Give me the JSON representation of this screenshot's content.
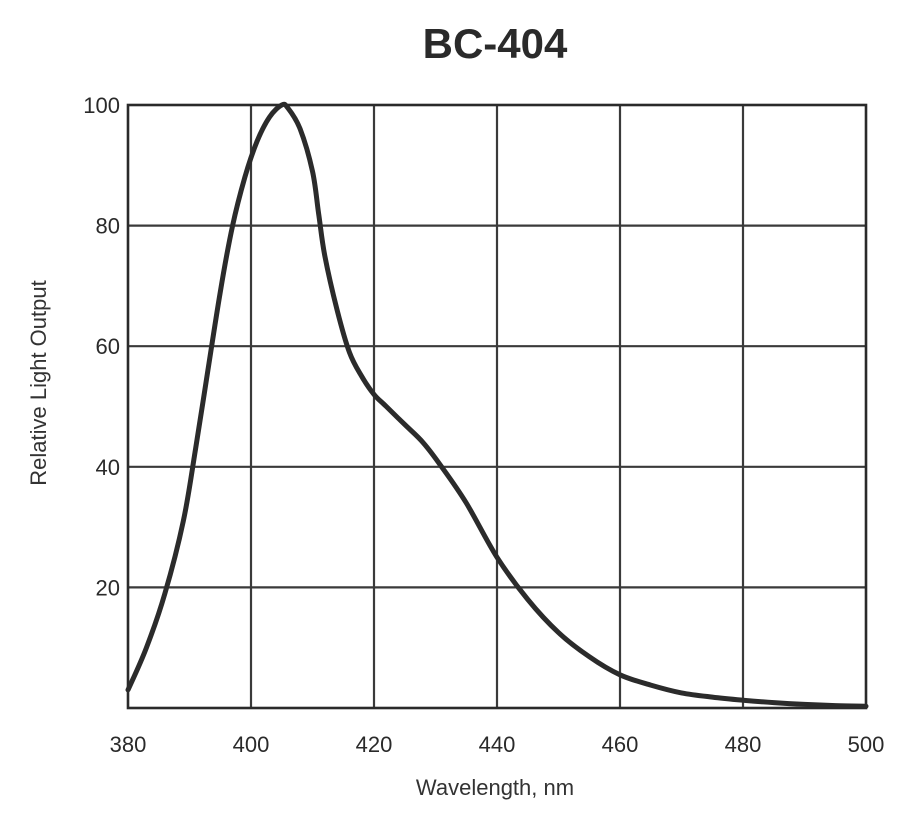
{
  "chart_data": {
    "type": "line",
    "title": "BC-404",
    "xlabel": "Wavelength, nm",
    "ylabel": "Relative Light Output",
    "xlim": [
      380,
      500
    ],
    "ylim": [
      0,
      100
    ],
    "x_ticks": [
      380,
      400,
      420,
      440,
      460,
      480,
      500
    ],
    "y_ticks": [
      20,
      40,
      60,
      80,
      100
    ],
    "grid": true,
    "series": [
      {
        "x": [
          380,
          383,
          386,
          389,
          391,
          393,
          395,
          397,
          399,
          401,
          403,
          405,
          406,
          408,
          410,
          411,
          412,
          414,
          416,
          418,
          420,
          422,
          425,
          428,
          431,
          435,
          440,
          445,
          450,
          455,
          460,
          465,
          470,
          475,
          480,
          485,
          490,
          495,
          500
        ],
        "y": [
          3,
          10,
          19,
          31,
          43,
          56,
          69,
          80,
          88,
          94,
          98,
          100,
          99.5,
          96,
          89,
          82,
          75,
          66,
          59,
          55,
          52,
          50,
          47,
          44,
          40,
          34,
          25,
          18,
          12.5,
          8.5,
          5.5,
          3.8,
          2.5,
          1.8,
          1.3,
          0.9,
          0.6,
          0.4,
          0.3
        ]
      }
    ]
  }
}
